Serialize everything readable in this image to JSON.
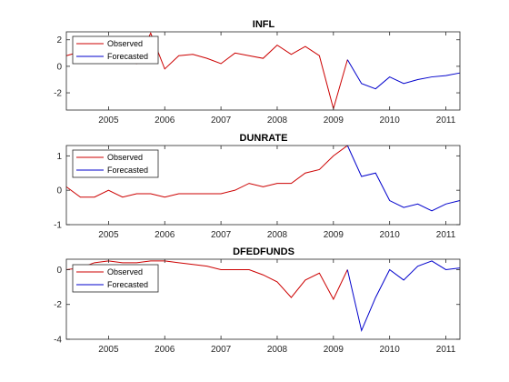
{
  "chart_data": [
    {
      "type": "line",
      "title": "INFL",
      "xlim": [
        2004.25,
        2011.25
      ],
      "ylim": [
        -3.3,
        2.6
      ],
      "yticks": [
        -2,
        0,
        2
      ],
      "xticks": [
        2005,
        2006,
        2007,
        2008,
        2009,
        2010,
        2011
      ],
      "legend": {
        "position": "top-left",
        "entries": [
          "Observed",
          "Forecasted"
        ]
      },
      "series": [
        {
          "name": "Observed",
          "color": "#cc0000",
          "x": [
            2004.25,
            2004.5,
            2004.75,
            2005.0,
            2005.25,
            2005.5,
            2005.75,
            2006.0,
            2006.25,
            2006.5,
            2006.75,
            2007.0,
            2007.25,
            2007.5,
            2007.75,
            2008.0,
            2008.25,
            2008.5,
            2008.75,
            2009.0,
            2009.25
          ],
          "y": [
            0.8,
            1.1,
            0.9,
            1.3,
            0.6,
            0.2,
            2.5,
            -0.2,
            0.8,
            0.9,
            0.6,
            0.2,
            1.0,
            0.8,
            0.6,
            1.6,
            0.9,
            1.5,
            0.8,
            -3.2,
            0.5
          ]
        },
        {
          "name": "Forecasted",
          "color": "#0000cc",
          "x": [
            2009.25,
            2009.5,
            2009.75,
            2010.0,
            2010.25,
            2010.5,
            2010.75,
            2011.0,
            2011.25
          ],
          "y": [
            0.5,
            -1.3,
            -1.7,
            -0.8,
            -1.3,
            -1.0,
            -0.8,
            -0.7,
            -0.5
          ]
        }
      ]
    },
    {
      "type": "line",
      "title": "DUNRATE",
      "xlim": [
        2004.25,
        2011.25
      ],
      "ylim": [
        -1,
        1.3
      ],
      "yticks": [
        -1,
        0,
        1
      ],
      "xticks": [
        2005,
        2006,
        2007,
        2008,
        2009,
        2010,
        2011
      ],
      "legend": {
        "position": "top-left",
        "entries": [
          "Observed",
          "Forecasted"
        ]
      },
      "series": [
        {
          "name": "Observed",
          "color": "#cc0000",
          "x": [
            2004.25,
            2004.5,
            2004.75,
            2005.0,
            2005.25,
            2005.5,
            2005.75,
            2006.0,
            2006.25,
            2006.5,
            2006.75,
            2007.0,
            2007.25,
            2007.5,
            2007.75,
            2008.0,
            2008.25,
            2008.5,
            2008.75,
            2009.0,
            2009.25
          ],
          "y": [
            0.1,
            -0.2,
            -0.2,
            0.0,
            -0.2,
            -0.1,
            -0.1,
            -0.2,
            -0.1,
            -0.1,
            -0.1,
            -0.1,
            0.0,
            0.2,
            0.1,
            0.2,
            0.2,
            0.5,
            0.6,
            1.0,
            1.3
          ]
        },
        {
          "name": "Forecasted",
          "color": "#0000cc",
          "x": [
            2009.25,
            2009.5,
            2009.75,
            2010.0,
            2010.25,
            2010.5,
            2010.75,
            2011.0,
            2011.25
          ],
          "y": [
            1.3,
            0.4,
            0.5,
            -0.3,
            -0.5,
            -0.4,
            -0.6,
            -0.4,
            -0.3
          ]
        }
      ]
    },
    {
      "type": "line",
      "title": "DFEDFUNDS",
      "xlim": [
        2004.25,
        2011.25
      ],
      "ylim": [
        -4,
        0.6
      ],
      "yticks": [
        -4,
        -2,
        0
      ],
      "xticks": [
        2005,
        2006,
        2007,
        2008,
        2009,
        2010,
        2011
      ],
      "legend": {
        "position": "top-left",
        "entries": [
          "Observed",
          "Forecasted"
        ]
      },
      "series": [
        {
          "name": "Observed",
          "color": "#cc0000",
          "x": [
            2004.25,
            2004.5,
            2004.75,
            2005.0,
            2005.25,
            2005.5,
            2005.75,
            2006.0,
            2006.25,
            2006.5,
            2006.75,
            2007.0,
            2007.25,
            2007.5,
            2007.75,
            2008.0,
            2008.25,
            2008.5,
            2008.75,
            2009.0,
            2009.25
          ],
          "y": [
            0.0,
            0.1,
            0.4,
            0.5,
            0.4,
            0.4,
            0.5,
            0.5,
            0.4,
            0.3,
            0.2,
            0.0,
            0.0,
            0.0,
            -0.3,
            -0.7,
            -1.6,
            -0.6,
            -0.2,
            -1.7,
            0.0
          ]
        },
        {
          "name": "Forecasted",
          "color": "#0000cc",
          "x": [
            2009.25,
            2009.5,
            2009.75,
            2010.0,
            2010.25,
            2010.5,
            2010.75,
            2011.0,
            2011.25
          ],
          "y": [
            0.0,
            -3.5,
            -1.6,
            0.0,
            -0.6,
            0.2,
            0.5,
            0.0,
            0.1
          ]
        }
      ]
    }
  ]
}
